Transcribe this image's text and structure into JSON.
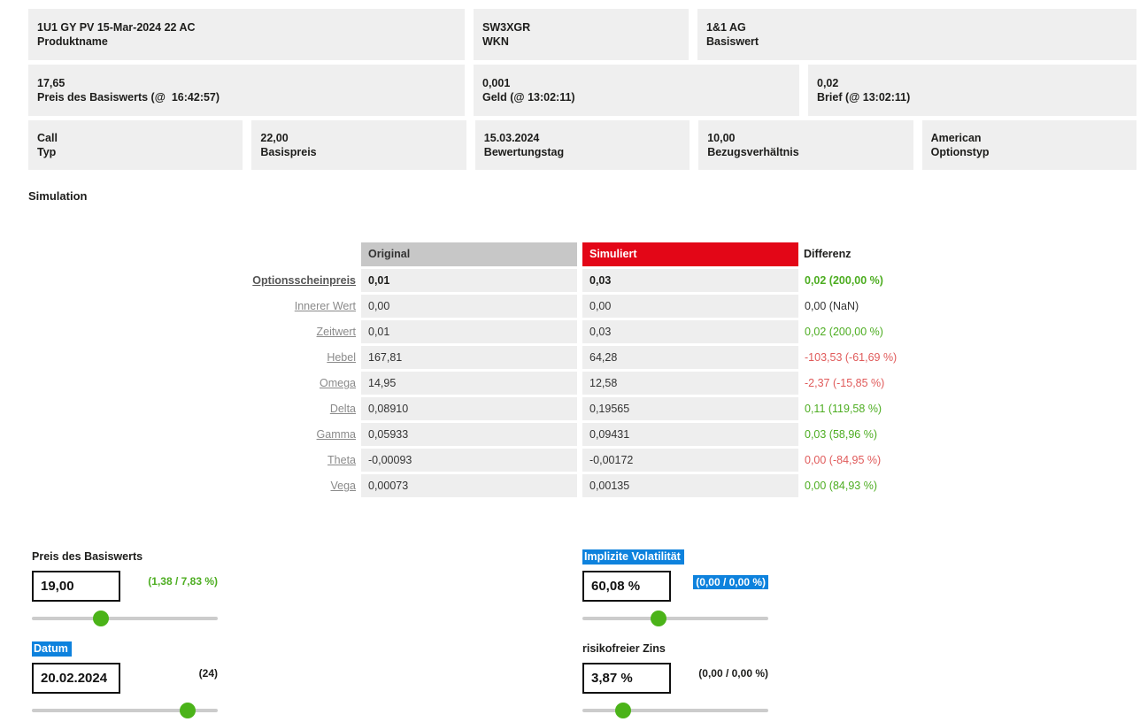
{
  "colors": {
    "accent_red": "#e30617",
    "positive_green": "#4dad21",
    "negative_red": "#e05a5a",
    "selection_blue": "#0e82dd",
    "card_bg": "#efefef",
    "table_header_gray": "#c7c7c7",
    "table_cell_gray": "#eeeeee",
    "slider_thumb_green": "#4bb319"
  },
  "info_cards": {
    "row1": [
      {
        "value": "1U1 GY PV 15-Mar-2024 22 AC",
        "label": "Produktname"
      },
      {
        "value": "SW3XGR",
        "label": "WKN"
      },
      {
        "value": "1&1 AG",
        "label": "Basiswert"
      }
    ],
    "row2": [
      {
        "value": "17,65",
        "label": "Preis des Basiswerts (@  16:42:57)"
      },
      {
        "value": "0,001",
        "label": "Geld (@ 13:02:11)"
      },
      {
        "value": "0,02",
        "label": "Brief (@ 13:02:11)"
      }
    ],
    "row3": [
      {
        "value": "Call",
        "label": "Typ"
      },
      {
        "value": "22,00",
        "label": "Basispreis"
      },
      {
        "value": "15.03.2024",
        "label": "Bewertungstag"
      },
      {
        "value": "10,00",
        "label": "Bezugsverhältnis"
      },
      {
        "value": "American",
        "label": "Optionstyp"
      }
    ]
  },
  "section_title": "Simulation",
  "table": {
    "col_headers": {
      "original": "Original",
      "simuliert": "Simuliert",
      "differenz": "Differenz"
    },
    "rows": [
      {
        "label": "Optionsscheinpreis",
        "original": "0,01",
        "simuliert": "0,03",
        "diff": "0,02 (200,00 %)",
        "trend": "up",
        "emphasis": true
      },
      {
        "label": "Innerer Wert",
        "original": "0,00",
        "simuliert": "0,00",
        "diff": "0,00 (NaN)",
        "trend": "flat",
        "emphasis": false
      },
      {
        "label": "Zeitwert",
        "original": "0,01",
        "simuliert": "0,03",
        "diff": "0,02 (200,00 %)",
        "trend": "up",
        "emphasis": false
      },
      {
        "label": "Hebel",
        "original": "167,81",
        "simuliert": "64,28",
        "diff": "-103,53 (-61,69 %)",
        "trend": "down",
        "emphasis": false
      },
      {
        "label": "Omega",
        "original": "14,95",
        "simuliert": "12,58",
        "diff": "-2,37 (-15,85 %)",
        "trend": "down",
        "emphasis": false
      },
      {
        "label": "Delta",
        "original": "0,08910",
        "simuliert": "0,19565",
        "diff": "0,11 (119,58 %)",
        "trend": "up",
        "emphasis": false
      },
      {
        "label": "Gamma",
        "original": "0,05933",
        "simuliert": "0,09431",
        "diff": "0,03 (58,96 %)",
        "trend": "up",
        "emphasis": false
      },
      {
        "label": "Theta",
        "original": "-0,00093",
        "simuliert": "-0,00172",
        "diff": "0,00 (-84,95 %)",
        "trend": "down",
        "emphasis": false
      },
      {
        "label": "Vega",
        "original": "0,00073",
        "simuliert": "0,00135",
        "diff": "0,00 (84,93 %)",
        "trend": "up",
        "emphasis": false
      }
    ]
  },
  "controls": [
    {
      "label": "Preis des Basiswerts",
      "label_style": "plain",
      "value": "19,00",
      "note": "(1,38 / 7,83 %)",
      "note_style": "green",
      "slider_percent": 37
    },
    {
      "label": "Implizite Volatilität",
      "label_style": "selected",
      "value": "60,08 %",
      "note": "(0,00 / 0,00 %)",
      "note_style": "selected",
      "slider_percent": 41
    },
    {
      "label": "Datum",
      "label_style": "selected",
      "value": "20.02.2024",
      "note": "(24)",
      "note_style": "plain",
      "slider_percent": 84
    },
    {
      "label": "risikofreier Zins",
      "label_style": "plain",
      "value": "3,87 %",
      "note": "(0,00 / 0,00 %)",
      "note_style": "plain",
      "slider_percent": 22
    }
  ]
}
